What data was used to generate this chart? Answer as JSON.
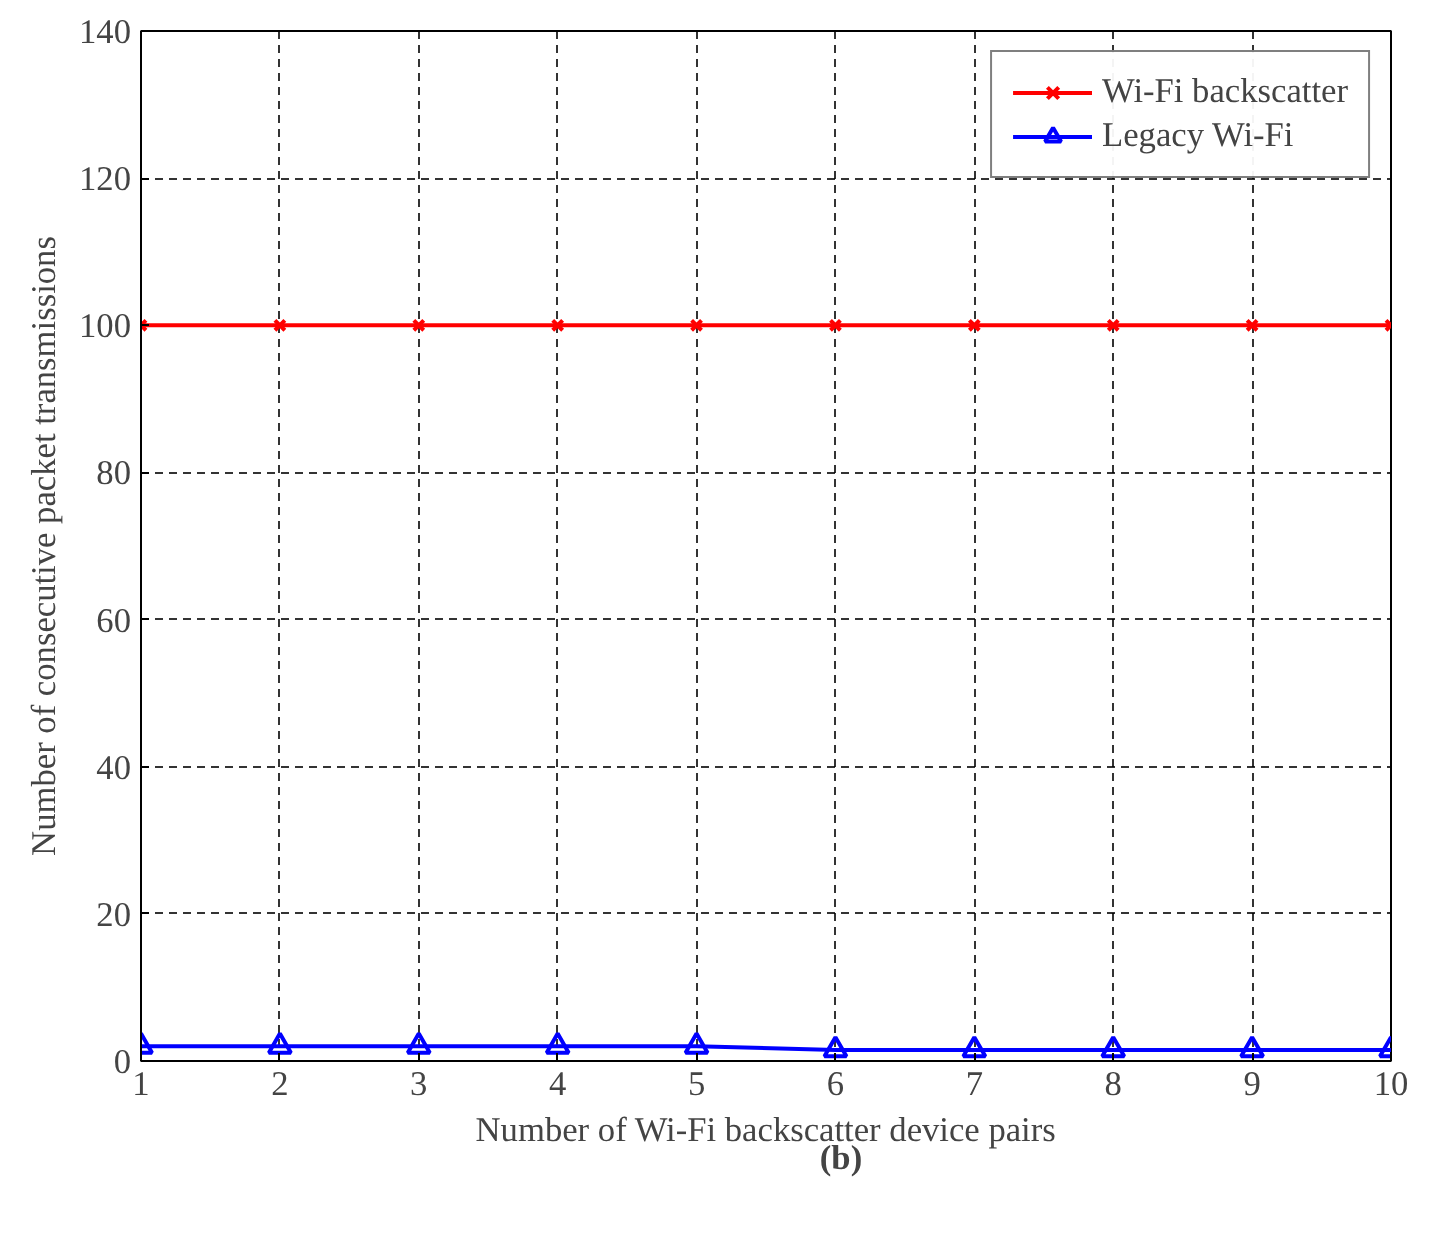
{
  "chart_data": {
    "type": "line",
    "xlabel": "Number of Wi-Fi backscatter device pairs",
    "ylabel": "Number of consecutive packet transmissions",
    "x": [
      1,
      2,
      3,
      4,
      5,
      6,
      7,
      8,
      9,
      10
    ],
    "series": [
      {
        "name": "Wi-Fi backscatter",
        "color": "#ff0000",
        "marker": "cross",
        "values": [
          100,
          100,
          100,
          100,
          100,
          100,
          100,
          100,
          100,
          100
        ]
      },
      {
        "name": "Legacy Wi-Fi",
        "color": "#0000ff",
        "marker": "triangle",
        "values": [
          2,
          2,
          2,
          2,
          2,
          1.5,
          1.5,
          1.5,
          1.5,
          1.5
        ]
      }
    ],
    "xlim": [
      1,
      10
    ],
    "ylim": [
      0,
      140
    ],
    "xticks": [
      1,
      2,
      3,
      4,
      5,
      6,
      7,
      8,
      9,
      10
    ],
    "yticks": [
      0,
      20,
      40,
      60,
      80,
      100,
      120,
      140
    ],
    "grid": true,
    "legend": "top right",
    "line_style": "solid",
    "annotations": [
      "(b)"
    ]
  }
}
